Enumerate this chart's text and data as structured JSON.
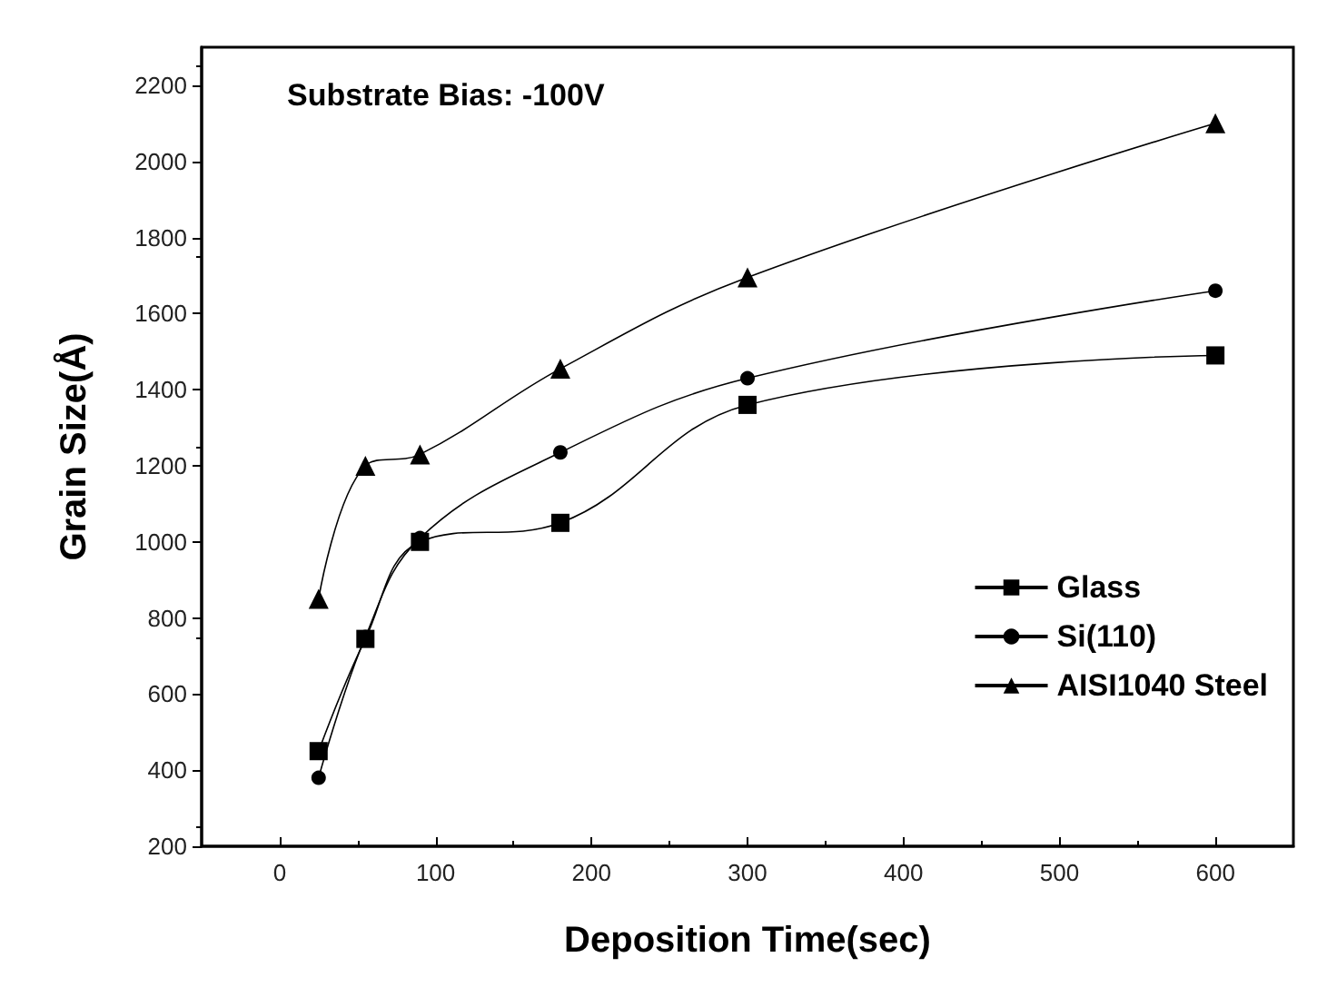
{
  "chart_data": {
    "type": "line",
    "xlabel": "Deposition Time(sec)",
    "ylabel": "Grain Size(Å)",
    "annotations": [
      "Substrate Bias: -100V"
    ],
    "x": [
      25,
      55,
      90,
      180,
      300,
      600
    ],
    "series": [
      {
        "name": "Glass",
        "color": "#000000",
        "marker": "square",
        "values": [
          450,
          745,
          1000,
          1050,
          1360,
          1490
        ]
      },
      {
        "name": "Si(110)",
        "color": "#000000",
        "marker": "circle",
        "values": [
          380,
          750,
          1010,
          1235,
          1430,
          1660
        ]
      },
      {
        "name": "AISI1040 Steel",
        "color": "#000000",
        "marker": "triangle",
        "values": [
          850,
          1200,
          1230,
          1455,
          1695,
          2100
        ]
      }
    ],
    "xlim": [
      -50,
      650
    ],
    "xticks": [
      0,
      100,
      200,
      300,
      400,
      500,
      600
    ],
    "ylim": [
      200,
      2300
    ],
    "yticks": [
      200,
      400,
      600,
      800,
      1000,
      1200,
      1400,
      1600,
      1800,
      2000,
      2200
    ],
    "grid": false,
    "legend": "bottom right",
    "line_style": "solid"
  }
}
